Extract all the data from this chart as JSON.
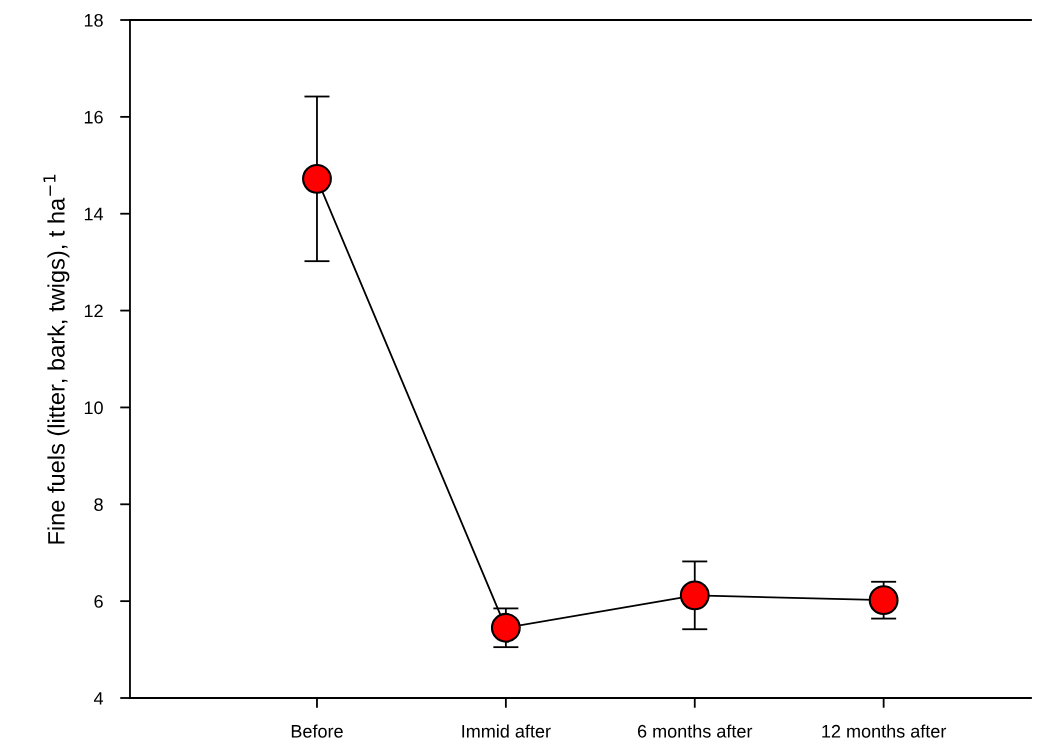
{
  "chart_data": {
    "type": "line",
    "ylabel": "Fine fuels (litter, bark, twigs), t ha$^{−1}$",
    "categories": [
      "Before",
      "Immid after",
      "6 months after",
      "12 months after"
    ],
    "series": [
      {
        "color": "#ff0000",
        "values": [
          14.72,
          5.45,
          6.12,
          6.02
        ],
        "errors": [
          1.7,
          0.4,
          0.7,
          0.38
        ]
      }
    ],
    "ylim": [
      4,
      18
    ],
    "yticks": [
      4,
      6,
      8,
      10,
      12,
      14,
      16,
      18
    ],
    "grid": false,
    "legend": false,
    "marker": "circle",
    "line_style": "solid"
  }
}
